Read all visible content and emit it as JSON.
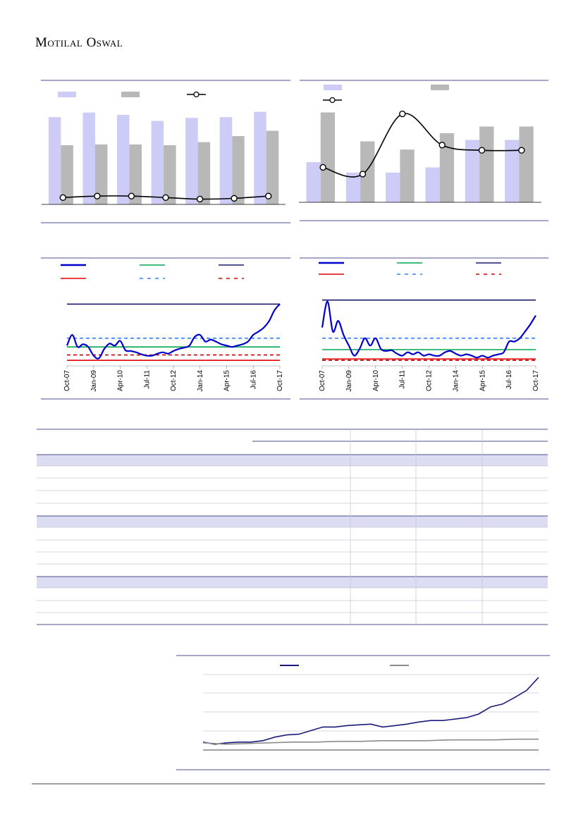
{
  "header": {
    "brand": "Motilal Oswal"
  },
  "chart_data": [
    {
      "type": "bar_line",
      "categories": [
        null,
        null,
        null,
        null,
        null,
        null,
        null
      ],
      "ylim": [
        0,
        130
      ],
      "series": [
        {
          "color": "#ccccf7",
          "values": [
            115,
            121,
            118,
            110,
            114,
            115,
            122
          ]
        },
        {
          "color": "#b8b8b8",
          "values": [
            78,
            79,
            79,
            78,
            82,
            90,
            97
          ]
        },
        {
          "color": "#000000",
          "values": [
            9,
            11,
            11,
            9,
            7,
            8,
            11
          ]
        }
      ]
    },
    {
      "type": "bar_line",
      "categories": [
        null,
        null,
        null,
        null,
        null,
        null
      ],
      "ylim": [
        0,
        130
      ],
      "series": [
        {
          "color": "#ccccf7",
          "values": [
            54,
            40,
            40,
            47,
            84,
            84
          ]
        },
        {
          "color": "#b8b8b8",
          "values": [
            121,
            82,
            71,
            93,
            102,
            102
          ]
        },
        {
          "color": "#000000",
          "values": [
            47,
            38,
            119,
            77,
            70,
            70
          ]
        }
      ]
    },
    {
      "type": "band_line",
      "xlim": [
        0,
        40
      ],
      "ylim": [
        0,
        100
      ],
      "xticks": [
        {
          "value": 0,
          "label": "Oct-07"
        },
        {
          "value": 5,
          "label": "Jan-09"
        },
        {
          "value": 10,
          "label": "Apr-10"
        },
        {
          "value": 15,
          "label": "Jul-11"
        },
        {
          "value": 20,
          "label": "Oct-12"
        },
        {
          "value": 25,
          "label": "Jan-14"
        },
        {
          "value": 30,
          "label": "Apr-15"
        },
        {
          "value": 35,
          "label": "Jul-16"
        },
        {
          "value": 40,
          "label": "Oct-17"
        }
      ],
      "series": [
        {
          "color": "#0000cc",
          "values": [
            26,
            42,
            24,
            28,
            24,
            11,
            7,
            21,
            29,
            26,
            33,
            19,
            18,
            16,
            13,
            11,
            11,
            14,
            16,
            14,
            18,
            21,
            23,
            26,
            39,
            42,
            32,
            35,
            32,
            28,
            26,
            24,
            26,
            28,
            32,
            42,
            47,
            53,
            63,
            79,
            88
          ]
        }
      ],
      "levels": [
        {
          "color": "#00a651",
          "value": 24,
          "style": "solid"
        },
        {
          "color": "#1a1a6e",
          "value": 88,
          "style": "solid"
        },
        {
          "color": "#e00000",
          "value": 4,
          "style": "solid"
        },
        {
          "color": "#3380ff",
          "value": 37,
          "style": "dashed"
        },
        {
          "color": "#cc0000",
          "value": 12,
          "style": "dashed"
        }
      ]
    },
    {
      "type": "band_line",
      "xlim": [
        0,
        40
      ],
      "ylim": [
        0,
        100
      ],
      "xticks": [
        {
          "value": 0,
          "label": "Oct-07"
        },
        {
          "value": 5,
          "label": "Jan-09"
        },
        {
          "value": 10,
          "label": "Apr-10"
        },
        {
          "value": 15,
          "label": "Jul-11"
        },
        {
          "value": 20,
          "label": "Oct-12"
        },
        {
          "value": 25,
          "label": "Jan-14"
        },
        {
          "value": 30,
          "label": "Apr-15"
        },
        {
          "value": 35,
          "label": "Jul-16"
        },
        {
          "value": 40,
          "label": "Oct-17"
        }
      ],
      "series": [
        {
          "color": "#0000cc",
          "values": [
            53,
            92,
            47,
            63,
            42,
            26,
            11,
            21,
            37,
            26,
            37,
            21,
            18,
            19,
            14,
            11,
            16,
            13,
            16,
            11,
            13,
            11,
            11,
            16,
            18,
            14,
            11,
            13,
            11,
            8,
            11,
            8,
            11,
            13,
            16,
            32,
            32,
            37,
            47,
            58,
            71
          ]
        }
      ],
      "levels": [
        {
          "color": "#00a651",
          "value": 20,
          "style": "solid"
        },
        {
          "color": "#1a1a6e",
          "value": 94,
          "style": "solid"
        },
        {
          "color": "#e00000",
          "value": 6,
          "style": "solid"
        },
        {
          "color": "#3380ff",
          "value": 37,
          "style": "dashed"
        },
        {
          "color": "#cc0000",
          "value": 4,
          "style": "dashed"
        }
      ]
    },
    {
      "type": "line",
      "ylim": [
        0,
        105
      ],
      "series": [
        {
          "color": "#1a1a7a",
          "values": [
            11,
            8,
            10,
            11,
            11,
            13,
            18,
            21,
            22,
            27,
            32,
            32,
            34,
            35,
            36,
            32,
            34,
            36,
            39,
            41,
            41,
            43,
            45,
            50,
            60,
            64,
            73,
            83,
            101
          ]
        },
        {
          "color": "#8c8c8c",
          "values": [
            10,
            8,
            9,
            10,
            11,
            11,
            12,
            12,
            13,
            13,
            13,
            14,
            14,
            14,
            15,
            15
          ]
        }
      ]
    }
  ]
}
